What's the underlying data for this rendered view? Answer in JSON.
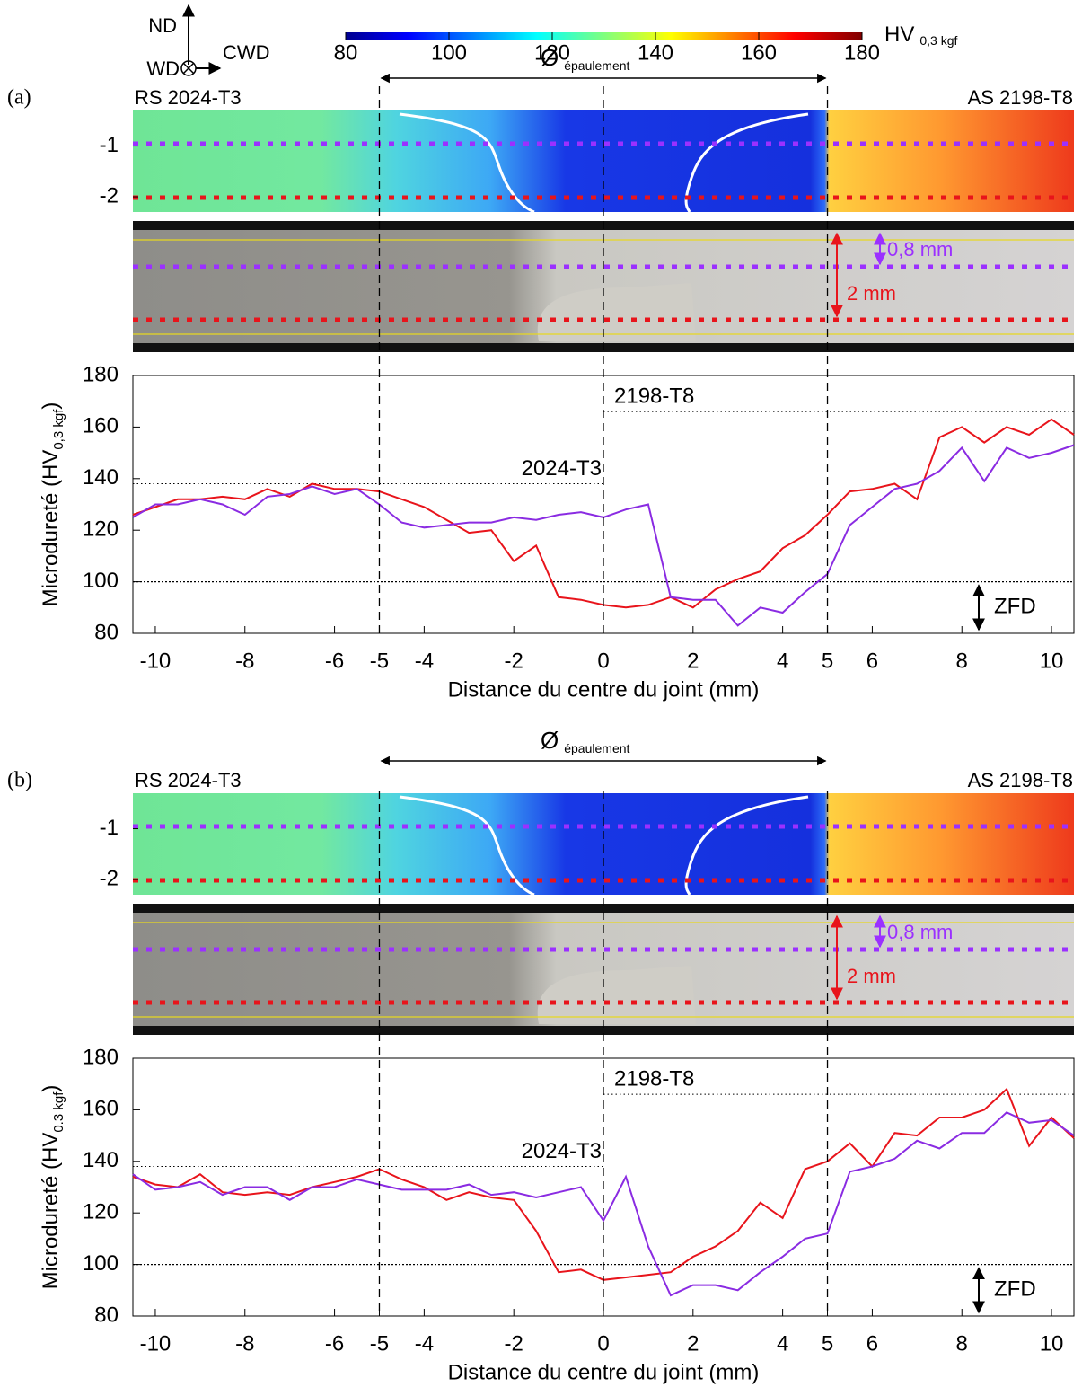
{
  "colorbar": {
    "lim": [
      80,
      180
    ],
    "ticks": [
      80,
      100,
      120,
      140,
      160,
      180
    ],
    "label": "HV",
    "label_sub": "0,3 kgf"
  },
  "orientation": {
    "up": "ND",
    "out": "WD",
    "right": "CWD"
  },
  "chart_data": [
    {
      "type": "line",
      "panel_label": "(a)",
      "left_label": "RS 2024-T3",
      "right_label": "AS 2198-T8",
      "shoulder_symbol": "Ø",
      "shoulder_sub": "épaulement",
      "shoulder_range": [
        -5,
        5
      ],
      "map": {
        "ylim": [
          -0.3,
          -2.3
        ],
        "yticks": [
          -1,
          -2
        ]
      },
      "scale_labels": [
        "0,8 mm",
        "2 mm"
      ],
      "ylabel": "Microdureté (HV",
      "ylabel_sub": "0,3 kgf",
      "ylabel_end": ")",
      "xlabel": "Distance du centre du joint (mm)",
      "xlim": [
        -10.5,
        10.5
      ],
      "ylim": [
        80,
        180
      ],
      "xticks": [
        -10,
        -8,
        -6,
        -5,
        -4,
        -2,
        0,
        2,
        4,
        5,
        6,
        8,
        10
      ],
      "yticks": [
        80,
        100,
        120,
        140,
        160,
        180
      ],
      "vlines": [
        -5,
        0,
        5
      ],
      "ref_lines": [
        {
          "label": "2024-T3",
          "value": 138,
          "x": [
            -10.5,
            0
          ]
        },
        {
          "label": "2198-T8",
          "value": 166,
          "x": [
            0,
            10.5
          ]
        }
      ],
      "zfd": {
        "label": "ZFD",
        "value": 100
      },
      "x": [
        -10.5,
        -10,
        -9.5,
        -9,
        -8.5,
        -8,
        -7.5,
        -7,
        -6.5,
        -6,
        -5.5,
        -5,
        -4.5,
        -4,
        -3.5,
        -3,
        -2.5,
        -2,
        -1.5,
        -1,
        -0.5,
        0,
        0.5,
        1,
        1.5,
        2,
        2.5,
        3,
        3.5,
        4,
        4.5,
        5,
        5.5,
        6,
        6.5,
        7,
        7.5,
        8,
        8.5,
        9,
        9.5,
        10,
        10.5
      ],
      "series": [
        {
          "color": "#e8141b",
          "values": [
            126,
            129,
            132,
            132,
            133,
            132,
            136,
            133,
            138,
            136,
            136,
            135,
            132,
            129,
            124,
            119,
            120,
            108,
            114,
            94,
            93,
            91,
            90,
            91,
            94,
            90,
            97,
            101,
            104,
            113,
            118,
            126,
            135,
            136,
            138,
            132,
            156,
            160,
            154,
            160,
            157,
            163,
            157
          ]
        },
        {
          "color": "#8a2be2",
          "values": [
            125,
            130,
            130,
            132,
            130,
            126,
            133,
            134,
            137,
            134,
            136,
            130,
            123,
            121,
            122,
            123,
            123,
            125,
            124,
            126,
            127,
            125,
            128,
            130,
            94,
            93,
            93,
            83,
            90,
            88,
            96,
            103,
            122,
            129,
            136,
            138,
            143,
            152,
            139,
            152,
            148,
            150,
            153
          ]
        }
      ]
    },
    {
      "type": "line",
      "panel_label": "(b)",
      "left_label": "RS 2024-T3",
      "right_label": "AS 2198-T8",
      "shoulder_symbol": "Ø",
      "shoulder_sub": "épaulement",
      "shoulder_range": [
        -5,
        5
      ],
      "map": {
        "ylim": [
          -0.3,
          -2.3
        ],
        "yticks": [
          -1,
          -2
        ]
      },
      "scale_labels": [
        "0,8 mm",
        "2 mm"
      ],
      "ylabel": "Microdureté (HV",
      "ylabel_sub": "0.3 kgf",
      "ylabel_end": ")",
      "xlabel": "Distance du centre du joint (mm)",
      "xlim": [
        -10.5,
        10.5
      ],
      "ylim": [
        80,
        180
      ],
      "xticks": [
        -10,
        -8,
        -6,
        -5,
        -4,
        -2,
        0,
        2,
        4,
        5,
        6,
        8,
        10
      ],
      "yticks": [
        80,
        100,
        120,
        140,
        160,
        180
      ],
      "vlines": [
        -5,
        0,
        5
      ],
      "ref_lines": [
        {
          "label": "2024-T3",
          "value": 138,
          "x": [
            -10.5,
            0
          ]
        },
        {
          "label": "2198-T8",
          "value": 166,
          "x": [
            0,
            10.5
          ]
        }
      ],
      "zfd": {
        "label": "ZFD",
        "value": 100
      },
      "x": [
        -10.5,
        -10,
        -9.5,
        -9,
        -8.5,
        -8,
        -7.5,
        -7,
        -6.5,
        -6,
        -5.5,
        -5,
        -4.5,
        -4,
        -3.5,
        -3,
        -2.5,
        -2,
        -1.5,
        -1,
        -0.5,
        0,
        0.5,
        1,
        1.5,
        2,
        2.5,
        3,
        3.5,
        4,
        4.5,
        5,
        5.5,
        6,
        6.5,
        7,
        7.5,
        8,
        8.5,
        9,
        9.5,
        10,
        10.5
      ],
      "series": [
        {
          "color": "#e8141b",
          "values": [
            134,
            131,
            130,
            135,
            128,
            127,
            128,
            127,
            130,
            132,
            134,
            137,
            133,
            130,
            125,
            128,
            126,
            125,
            113,
            97,
            98,
            94,
            95,
            96,
            97,
            103,
            107,
            113,
            124,
            118,
            137,
            140,
            147,
            138,
            151,
            150,
            157,
            157,
            160,
            168,
            146,
            157,
            149
          ]
        },
        {
          "color": "#8a2be2",
          "values": [
            135,
            129,
            130,
            132,
            127,
            130,
            130,
            125,
            130,
            130,
            133,
            131,
            129,
            129,
            129,
            131,
            127,
            128,
            126,
            128,
            130,
            117,
            134,
            107,
            88,
            92,
            92,
            90,
            97,
            103,
            110,
            112,
            136,
            138,
            141,
            148,
            145,
            151,
            151,
            159,
            155,
            156,
            150
          ]
        }
      ]
    }
  ]
}
